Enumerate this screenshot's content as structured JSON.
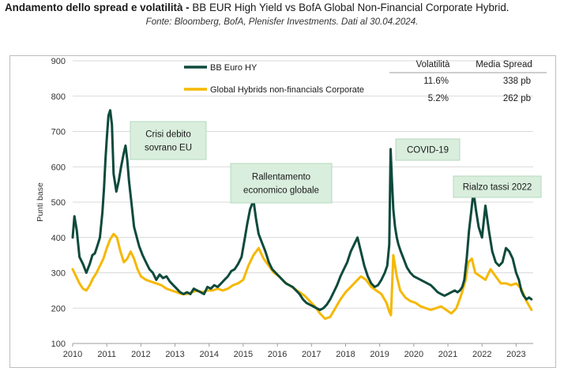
{
  "header": {
    "title_bold": "Andamento dello spread e volatilità -",
    "title_rest": " BB EUR High Yield vs BofA Global Non-Financial Corporate Hybrid.",
    "source": "Fonte: Bloomberg, BofA, Plenisfer Investments. Dati al 30.04.2024."
  },
  "colors": {
    "hy": "#0e4a3c",
    "hybrid": "#f5b800",
    "annotation_bg": "#d9eedd",
    "annotation_border": "#b5d8bd",
    "grid": "#d9d9d9"
  },
  "stats_table": {
    "headers": [
      "Volatilità",
      "Media Spread"
    ],
    "rows": [
      {
        "volatility": "11.6%",
        "mean_spread": "338 pb"
      },
      {
        "volatility": "5.2%",
        "mean_spread": "262 pb"
      }
    ]
  },
  "chart_data": {
    "type": "line",
    "title": "",
    "xlabel": "",
    "ylabel": "Punti base",
    "ylim": [
      100,
      900
    ],
    "xlim": [
      2010,
      2023.5
    ],
    "yticks": [
      "100",
      "200",
      "300",
      "400",
      "500",
      "600",
      "700",
      "800",
      "900"
    ],
    "xticks": [
      "2010",
      "2011",
      "2012",
      "2013",
      "2014",
      "2015",
      "2016",
      "2017",
      "2018",
      "2019",
      "2020",
      "2021",
      "2022",
      "2023"
    ],
    "legend_position": "top-left",
    "series": [
      {
        "name": "BB Euro HY",
        "x": [
          2010.0,
          2010.05,
          2010.12,
          2010.2,
          2010.3,
          2010.4,
          2010.5,
          2010.58,
          2010.65,
          2010.72,
          2010.8,
          2010.87,
          2010.92,
          2010.96,
          2011.0,
          2011.05,
          2011.1,
          2011.15,
          2011.2,
          2011.28,
          2011.35,
          2011.42,
          2011.5,
          2011.55,
          2011.6,
          2011.65,
          2011.72,
          2011.8,
          2011.88,
          2011.95,
          2012.05,
          2012.15,
          2012.25,
          2012.35,
          2012.45,
          2012.55,
          2012.65,
          2012.75,
          2012.85,
          2012.95,
          2013.05,
          2013.15,
          2013.25,
          2013.35,
          2013.45,
          2013.55,
          2013.65,
          2013.75,
          2013.85,
          2013.95,
          2014.05,
          2014.15,
          2014.25,
          2014.35,
          2014.45,
          2014.55,
          2014.65,
          2014.75,
          2014.85,
          2014.95,
          2015.05,
          2015.12,
          2015.2,
          2015.3,
          2015.38,
          2015.45,
          2015.55,
          2015.65,
          2015.75,
          2015.85,
          2015.95,
          2016.05,
          2016.15,
          2016.25,
          2016.35,
          2016.45,
          2016.55,
          2016.65,
          2016.75,
          2016.85,
          2016.95,
          2017.05,
          2017.15,
          2017.25,
          2017.35,
          2017.45,
          2017.55,
          2017.65,
          2017.75,
          2017.85,
          2017.95,
          2018.05,
          2018.15,
          2018.25,
          2018.35,
          2018.45,
          2018.55,
          2018.65,
          2018.75,
          2018.85,
          2018.95,
          2019.05,
          2019.15,
          2019.22,
          2019.28,
          2019.32,
          2019.36,
          2019.4,
          2019.45,
          2019.5,
          2019.55,
          2019.62,
          2019.7,
          2019.8,
          2019.9,
          2020.0,
          2020.1,
          2020.2,
          2020.3,
          2020.4,
          2020.5,
          2020.6,
          2020.7,
          2020.8,
          2020.9,
          2021.0,
          2021.1,
          2021.2,
          2021.28,
          2021.35,
          2021.42,
          2021.48,
          2021.55,
          2021.62,
          2021.68,
          2021.75,
          2021.82,
          2021.9,
          2022.0,
          2022.1,
          2022.2,
          2022.3,
          2022.4,
          2022.5,
          2022.6,
          2022.7,
          2022.8,
          2022.9,
          2023.0,
          2023.08,
          2023.15,
          2023.22,
          2023.3,
          2023.38,
          2023.45
        ],
        "values": [
          400,
          460,
          420,
          345,
          325,
          300,
          325,
          350,
          355,
          375,
          400,
          470,
          540,
          620,
          680,
          745,
          760,
          720,
          580,
          530,
          560,
          600,
          640,
          660,
          620,
          560,
          500,
          430,
          400,
          375,
          350,
          330,
          310,
          300,
          280,
          295,
          285,
          290,
          275,
          265,
          255,
          245,
          240,
          245,
          240,
          255,
          250,
          245,
          240,
          260,
          255,
          265,
          260,
          270,
          280,
          290,
          305,
          310,
          325,
          345,
          400,
          440,
          480,
          505,
          450,
          410,
          385,
          360,
          330,
          310,
          300,
          290,
          280,
          270,
          265,
          260,
          250,
          240,
          225,
          215,
          210,
          205,
          200,
          195,
          200,
          210,
          225,
          245,
          265,
          290,
          310,
          330,
          360,
          380,
          400,
          360,
          320,
          290,
          270,
          260,
          265,
          280,
          300,
          320,
          380,
          650,
          560,
          480,
          430,
          400,
          380,
          360,
          340,
          315,
          300,
          290,
          285,
          280,
          275,
          270,
          265,
          255,
          245,
          240,
          235,
          240,
          245,
          250,
          245,
          250,
          260,
          280,
          340,
          420,
          470,
          530,
          480,
          430,
          400,
          490,
          420,
          360,
          330,
          320,
          330,
          370,
          360,
          340,
          300,
          280,
          250,
          235,
          225,
          230,
          225
        ]
      },
      {
        "name": "Global Hybrids non-financials Corporate",
        "x": [
          2010.0,
          2010.1,
          2010.2,
          2010.3,
          2010.4,
          2010.5,
          2010.6,
          2010.7,
          2010.8,
          2010.9,
          2011.0,
          2011.1,
          2011.2,
          2011.3,
          2011.4,
          2011.5,
          2011.6,
          2011.7,
          2011.8,
          2011.9,
          2012.0,
          2012.15,
          2012.3,
          2012.45,
          2012.6,
          2012.75,
          2012.9,
          2013.05,
          2013.2,
          2013.35,
          2013.5,
          2013.65,
          2013.8,
          2013.95,
          2014.1,
          2014.25,
          2014.4,
          2014.55,
          2014.7,
          2014.85,
          2015.0,
          2015.15,
          2015.3,
          2015.45,
          2015.6,
          2015.75,
          2015.9,
          2016.05,
          2016.2,
          2016.35,
          2016.5,
          2016.65,
          2016.8,
          2016.95,
          2017.1,
          2017.25,
          2017.4,
          2017.55,
          2017.7,
          2017.85,
          2018.0,
          2018.15,
          2018.3,
          2018.45,
          2018.6,
          2018.75,
          2018.9,
          2019.05,
          2019.2,
          2019.28,
          2019.33,
          2019.4,
          2019.5,
          2019.6,
          2019.75,
          2019.9,
          2020.05,
          2020.2,
          2020.35,
          2020.5,
          2020.65,
          2020.8,
          2020.95,
          2021.1,
          2021.25,
          2021.4,
          2021.52,
          2021.6,
          2021.7,
          2021.8,
          2021.95,
          2022.1,
          2022.25,
          2022.4,
          2022.55,
          2022.7,
          2022.85,
          2023.0,
          2023.15,
          2023.3,
          2023.45
        ],
        "values": [
          310,
          290,
          270,
          255,
          250,
          265,
          285,
          300,
          320,
          340,
          370,
          395,
          410,
          400,
          360,
          330,
          340,
          360,
          340,
          310,
          290,
          280,
          275,
          270,
          265,
          255,
          250,
          245,
          240,
          240,
          245,
          250,
          245,
          250,
          250,
          255,
          250,
          255,
          265,
          270,
          280,
          320,
          350,
          370,
          340,
          320,
          300,
          290,
          275,
          265,
          255,
          245,
          235,
          220,
          205,
          185,
          170,
          175,
          200,
          225,
          245,
          260,
          275,
          290,
          280,
          260,
          250,
          240,
          215,
          190,
          180,
          350,
          290,
          250,
          230,
          220,
          215,
          205,
          200,
          195,
          200,
          205,
          195,
          185,
          200,
          240,
          280,
          330,
          340,
          300,
          290,
          280,
          310,
          290,
          270,
          270,
          265,
          270,
          255,
          220,
          195
        ]
      }
    ],
    "annotations": [
      {
        "text_lines": [
          "Crisi debito",
          "sovrano EU"
        ]
      },
      {
        "text_lines": [
          "Rallentamento",
          "economico globale"
        ]
      },
      {
        "text_lines": [
          "COVID-19"
        ]
      },
      {
        "text_lines": [
          "Rialzo tassi 2022"
        ]
      }
    ]
  }
}
